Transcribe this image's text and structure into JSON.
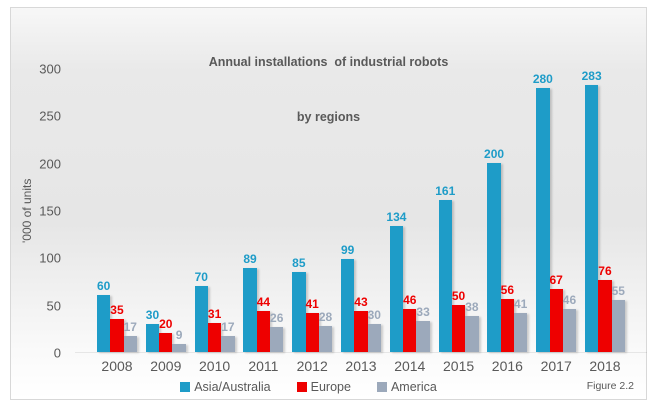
{
  "title": {
    "line1": "Annual installations  of industrial robots",
    "line2": "by regions"
  },
  "figure_caption": "Figure 2.2",
  "colors": {
    "asia_australia": "#1E9CC8",
    "europe": "#EE0000",
    "america": "#9CA9BB",
    "text": "#595959",
    "frame_border": "#D8D8D8"
  },
  "chart_data": {
    "type": "bar",
    "title": "Annual installations of industrial robots by regions",
    "categories": [
      "2008",
      "2009",
      "2010",
      "2011",
      "2012",
      "2013",
      "2014",
      "2015",
      "2016",
      "2017",
      "2018"
    ],
    "series": [
      {
        "name": "Asia/Australia",
        "color": "#1E9CC8",
        "values": [
          60,
          30,
          70,
          89,
          85,
          99,
          134,
          161,
          200,
          280,
          283
        ]
      },
      {
        "name": "Europe",
        "color": "#EE0000",
        "values": [
          35,
          20,
          31,
          44,
          41,
          43,
          46,
          50,
          56,
          67,
          76
        ]
      },
      {
        "name": "America",
        "color": "#9CA9BB",
        "values": [
          17,
          9,
          17,
          26,
          28,
          30,
          33,
          38,
          41,
          46,
          55
        ]
      }
    ],
    "xlabel": "",
    "ylabel": "'000 of units",
    "ylim": [
      0,
      300
    ],
    "yticks": [
      0,
      50,
      100,
      150,
      200,
      250,
      300
    ],
    "grid": false,
    "data_labels": true,
    "legend_position": "bottom"
  }
}
